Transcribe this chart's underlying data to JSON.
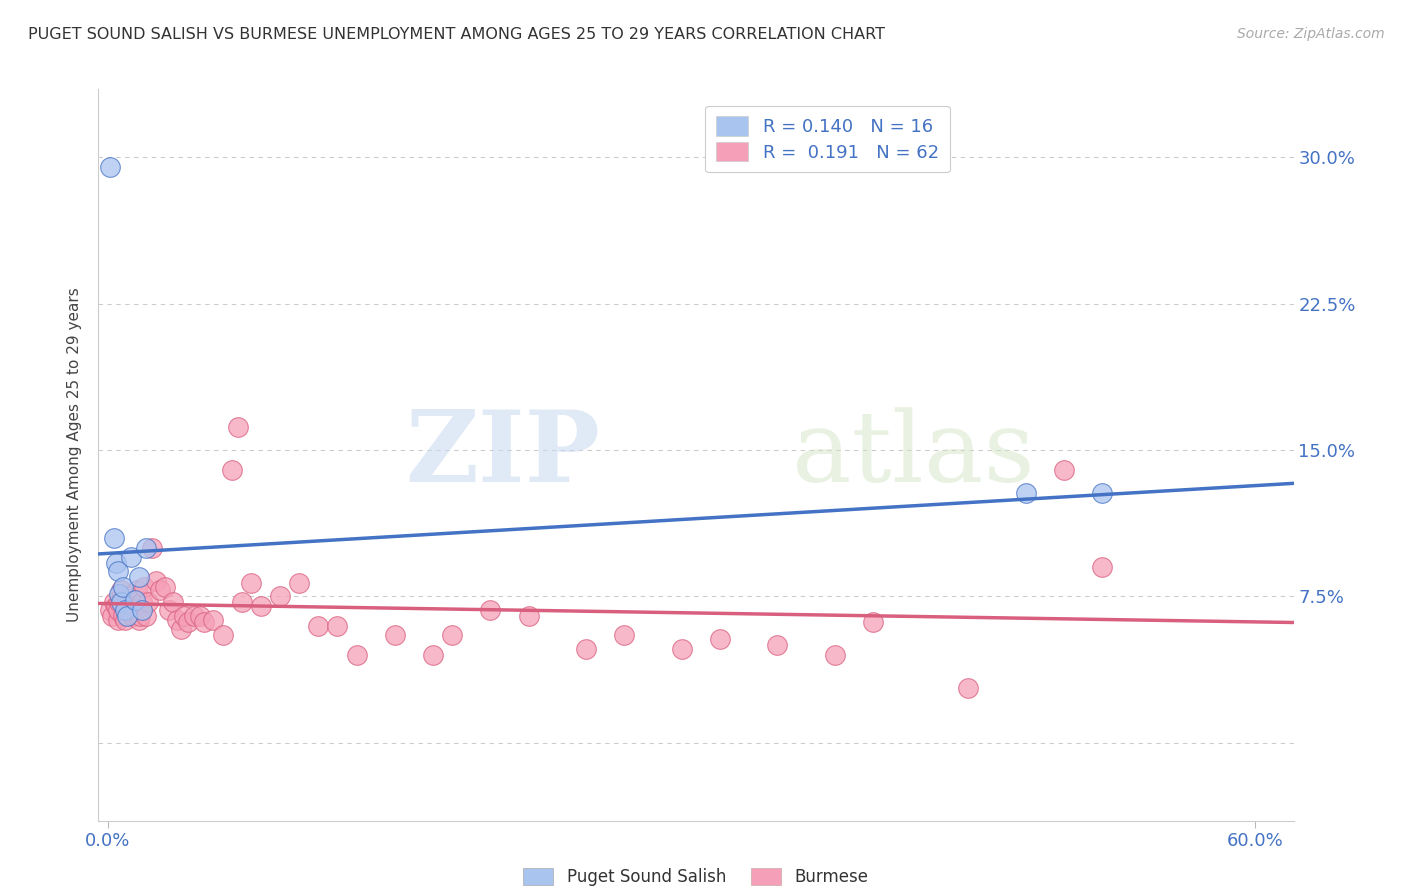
{
  "title": "PUGET SOUND SALISH VS BURMESE UNEMPLOYMENT AMONG AGES 25 TO 29 YEARS CORRELATION CHART",
  "source": "Source: ZipAtlas.com",
  "ylabel": "Unemployment Among Ages 25 to 29 years",
  "ytick_vals": [
    0.0,
    0.075,
    0.15,
    0.225,
    0.3
  ],
  "ytick_labels": [
    "",
    "7.5%",
    "15.0%",
    "22.5%",
    "30.0%"
  ],
  "xlim": [
    -0.005,
    0.62
  ],
  "ylim": [
    -0.04,
    0.335
  ],
  "salish_R": 0.14,
  "salish_N": 16,
  "burmese_R": 0.191,
  "burmese_N": 62,
  "salish_color": "#aac4f0",
  "burmese_color": "#f5a0b8",
  "salish_line_color": "#4472c4",
  "burmese_line_color": "#d95f7f",
  "salish_x": [
    0.001,
    0.003,
    0.004,
    0.005,
    0.006,
    0.007,
    0.008,
    0.009,
    0.01,
    0.012,
    0.014,
    0.016,
    0.018,
    0.02,
    0.48,
    0.52
  ],
  "salish_y": [
    0.295,
    0.105,
    0.092,
    0.088,
    0.076,
    0.072,
    0.08,
    0.068,
    0.065,
    0.095,
    0.073,
    0.085,
    0.068,
    0.1,
    0.128,
    0.128
  ],
  "burmese_x": [
    0.001,
    0.002,
    0.003,
    0.004,
    0.005,
    0.005,
    0.006,
    0.007,
    0.008,
    0.009,
    0.01,
    0.011,
    0.012,
    0.013,
    0.014,
    0.015,
    0.016,
    0.017,
    0.018,
    0.019,
    0.02,
    0.021,
    0.023,
    0.025,
    0.027,
    0.03,
    0.032,
    0.034,
    0.036,
    0.038,
    0.04,
    0.042,
    0.045,
    0.048,
    0.05,
    0.055,
    0.06,
    0.065,
    0.068,
    0.07,
    0.075,
    0.08,
    0.09,
    0.1,
    0.11,
    0.12,
    0.13,
    0.15,
    0.17,
    0.18,
    0.2,
    0.22,
    0.25,
    0.27,
    0.3,
    0.32,
    0.35,
    0.38,
    0.4,
    0.45,
    0.5,
    0.52
  ],
  "burmese_y": [
    0.068,
    0.065,
    0.072,
    0.07,
    0.063,
    0.068,
    0.072,
    0.078,
    0.065,
    0.063,
    0.075,
    0.068,
    0.07,
    0.065,
    0.068,
    0.078,
    0.063,
    0.065,
    0.072,
    0.08,
    0.065,
    0.072,
    0.1,
    0.083,
    0.078,
    0.08,
    0.068,
    0.072,
    0.063,
    0.058,
    0.065,
    0.062,
    0.065,
    0.065,
    0.062,
    0.063,
    0.055,
    0.14,
    0.162,
    0.072,
    0.082,
    0.07,
    0.075,
    0.082,
    0.06,
    0.06,
    0.045,
    0.055,
    0.045,
    0.055,
    0.068,
    0.065,
    0.048,
    0.055,
    0.048,
    0.053,
    0.05,
    0.045,
    0.062,
    0.028,
    0.14,
    0.09
  ],
  "watermark_zip": "ZIP",
  "watermark_atlas": "atlas",
  "background_color": "#ffffff",
  "grid_color": "#cccccc"
}
